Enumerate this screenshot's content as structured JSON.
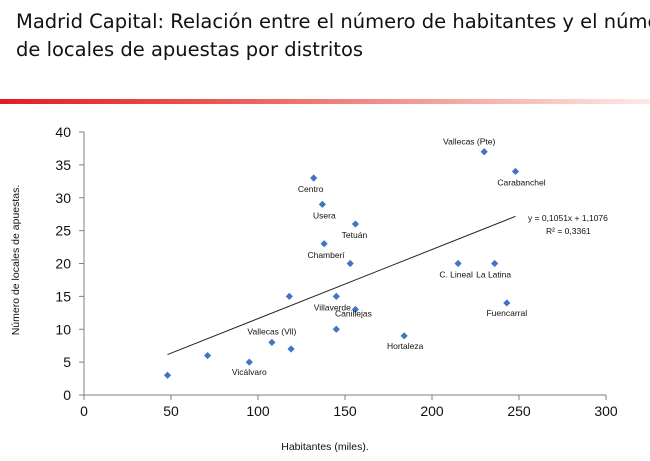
{
  "title_lines": [
    "Madrid Capital: Relación entre el número de habitantes y el número",
    "de locales de apuestas por distritos"
  ],
  "colors": {
    "marker": "#4472c4",
    "trendline": "#222222",
    "accent_rule": "#e31d22"
  },
  "chart_data": {
    "type": "scatter",
    "title": "Madrid Capital: Relación entre el número de habitantes y el número de locales de apuestas por distritos",
    "xlabel": "Habitantes (miles).",
    "ylabel": "Número de locales de apuestas.",
    "xlim": [
      0,
      300
    ],
    "ylim": [
      0,
      40
    ],
    "x_ticks": [
      0,
      50,
      100,
      150,
      200,
      250,
      300
    ],
    "y_ticks": [
      0,
      5,
      10,
      15,
      20,
      25,
      30,
      35,
      40
    ],
    "grid": false,
    "points": [
      {
        "x": 48,
        "y": 3,
        "label": ""
      },
      {
        "x": 71,
        "y": 6,
        "label": ""
      },
      {
        "x": 95,
        "y": 5,
        "label": "Vicálvaro"
      },
      {
        "x": 108,
        "y": 8,
        "label": "Vallecas (Vll)"
      },
      {
        "x": 119,
        "y": 7,
        "label": ""
      },
      {
        "x": 118,
        "y": 15,
        "label": ""
      },
      {
        "x": 132,
        "y": 33,
        "label": "Centro"
      },
      {
        "x": 137,
        "y": 29,
        "label": "Usera"
      },
      {
        "x": 138,
        "y": 23,
        "label": "Chamberí"
      },
      {
        "x": 145,
        "y": 15,
        "label": "Villaverde"
      },
      {
        "x": 145,
        "y": 10,
        "label": ""
      },
      {
        "x": 153,
        "y": 20,
        "label": ""
      },
      {
        "x": 156,
        "y": 26,
        "label": "Tetuán"
      },
      {
        "x": 156,
        "y": 13,
        "label": "Canillejas"
      },
      {
        "x": 184,
        "y": 9,
        "label": "Hortaleza"
      },
      {
        "x": 215,
        "y": 20,
        "label": "C. Lineal"
      },
      {
        "x": 230,
        "y": 37,
        "label": "Vallecas (Pte)"
      },
      {
        "x": 236,
        "y": 20,
        "label": "La Latina"
      },
      {
        "x": 243,
        "y": 14,
        "label": "Fuencarral"
      },
      {
        "x": 248,
        "y": 34,
        "label": "Carabanchel"
      }
    ],
    "trendline": {
      "type": "linear",
      "slope": 0.1051,
      "intercept": 1.1076,
      "x_range": [
        48,
        248
      ],
      "equation": "y = 0,1051x + 1,1076",
      "r_squared": "R² = 0,3361"
    }
  }
}
